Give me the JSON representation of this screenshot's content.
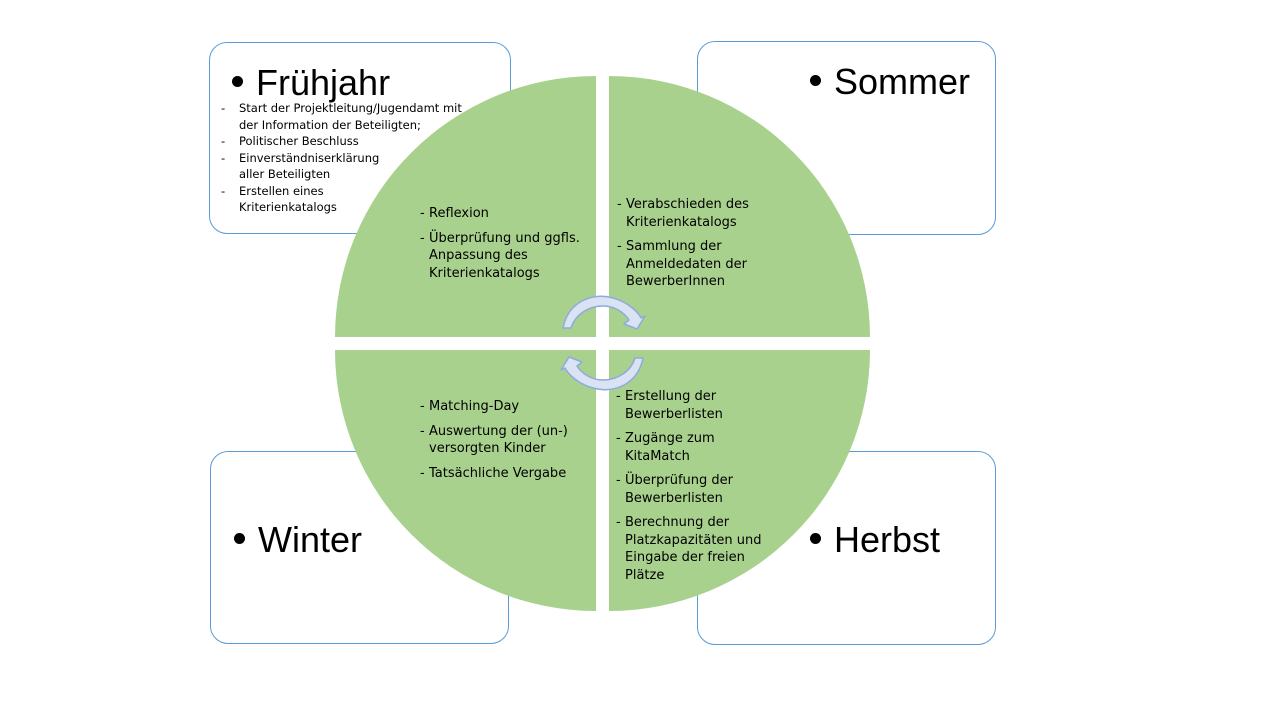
{
  "seasons": {
    "spring": {
      "title": "Frühjahr",
      "items": [
        "Start der Projektleitung/Jugendamt mit der Information der Beteiligten;",
        "Politischer Beschluss",
        "Einverständniserklärung aller Beteiligten",
        "Erstellen eines Kriterienkatalogs"
      ]
    },
    "summer": {
      "title": "Sommer"
    },
    "winter": {
      "title": "Winter"
    },
    "autumn": {
      "title": "Herbst"
    }
  },
  "quadrants": {
    "top_left": [
      "Reflexion",
      "Überprüfung und ggfls. Anpassung des Kriterienkatalogs"
    ],
    "top_right": [
      "Verabschieden des Kriterienkatalogs",
      "Sammlung der Anmeldedaten der BewerberInnen"
    ],
    "bottom_left": [
      "Matching-Day",
      "Auswertung der (un-) versorgten Kinder",
      "Tatsächliche Vergabe"
    ],
    "bottom_right": [
      "Erstellung der Bewerberlisten",
      "Zugänge zum KitaMatch",
      "Überprüfung der Bewerberlisten",
      "Berechnung der Platzkapazitäten und Eingabe der freien Plätze"
    ]
  },
  "colors": {
    "quadrant_fill": "#a9d18e",
    "card_border": "#5b9bd5",
    "cycle_arrow_fill": "#dae3f3",
    "cycle_arrow_stroke": "#8faadc"
  },
  "icons": [
    "cycle-arrow-icon"
  ]
}
